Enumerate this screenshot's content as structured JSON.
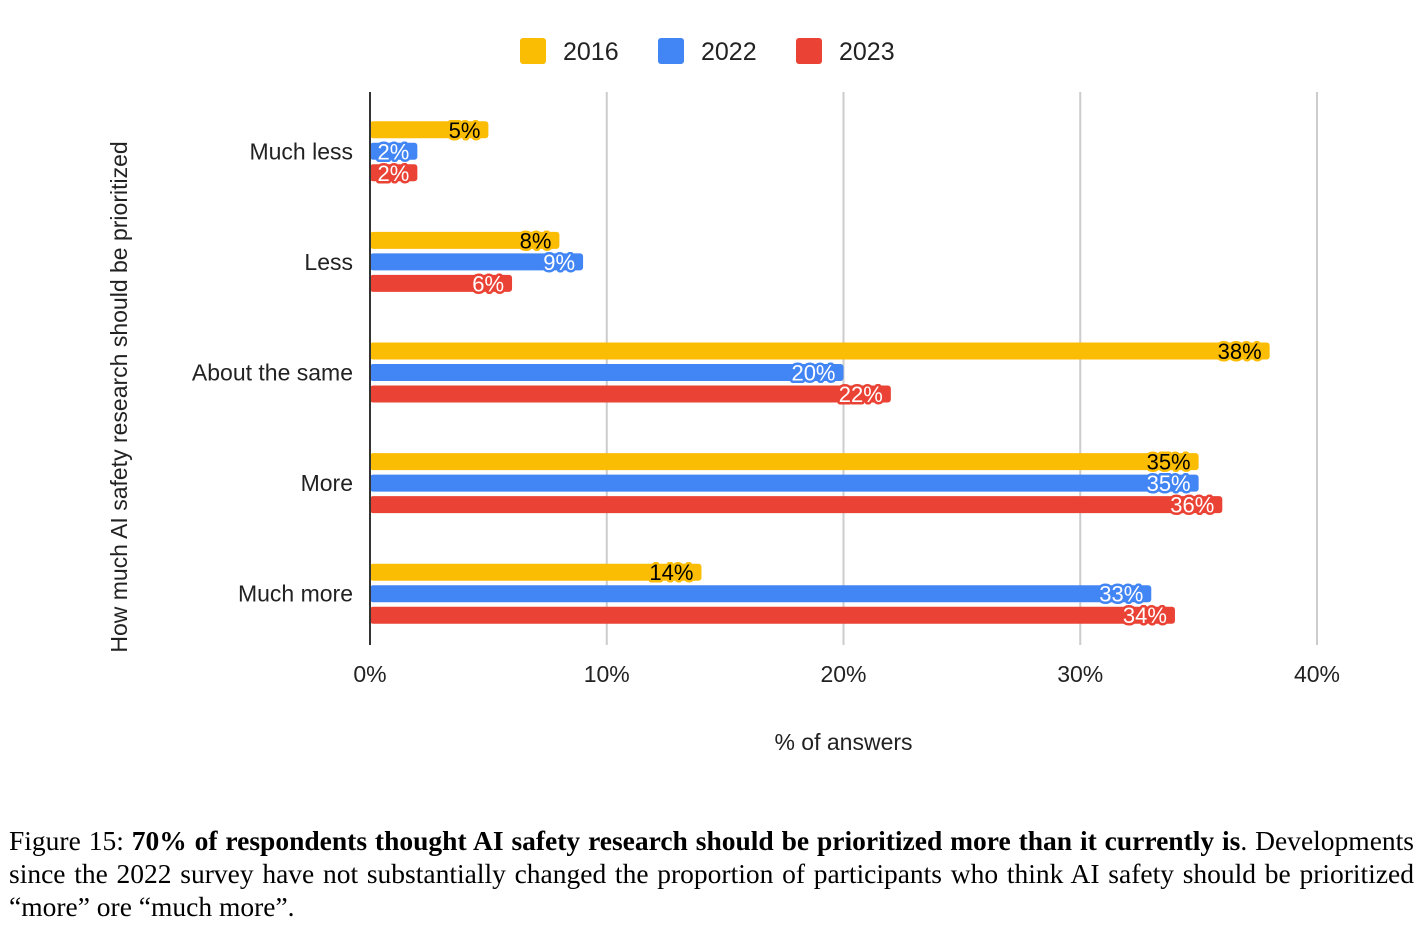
{
  "chart_data": {
    "type": "bar",
    "orientation": "horizontal",
    "title": "",
    "xlabel": "% of answers",
    "ylabel": "How much AI safety research should be prioritized",
    "categories": [
      "Much less",
      "Less",
      "About the same",
      "More",
      "Much more"
    ],
    "series": [
      {
        "name": "2016",
        "color": "#fbbc04",
        "label_color": "#000000",
        "values": [
          5,
          8,
          38,
          35,
          14
        ]
      },
      {
        "name": "2022",
        "color": "#4285f4",
        "label_color": "#ffffff",
        "values": [
          2,
          9,
          20,
          35,
          33
        ]
      },
      {
        "name": "2023",
        "color": "#ea4335",
        "label_color": "#ffffff",
        "values": [
          2,
          6,
          22,
          36,
          34
        ]
      }
    ],
    "xlim": [
      0,
      40
    ],
    "xticks": [
      0,
      10,
      20,
      30,
      40
    ],
    "xtick_labels": [
      "0%",
      "10%",
      "20%",
      "30%",
      "40%"
    ],
    "value_suffix": "%",
    "grid": "vertical",
    "legend": "top-center"
  },
  "caption": {
    "prefix": "Figure 15: ",
    "bold": "70% of respondents thought AI safety research should be prioritized more than it currently is",
    "bold_end": ".",
    "rest": " Developments since the 2022 survey have not substantially changed the proportion of participants who think AI safety should be prioritized “more” ore “much more”."
  }
}
